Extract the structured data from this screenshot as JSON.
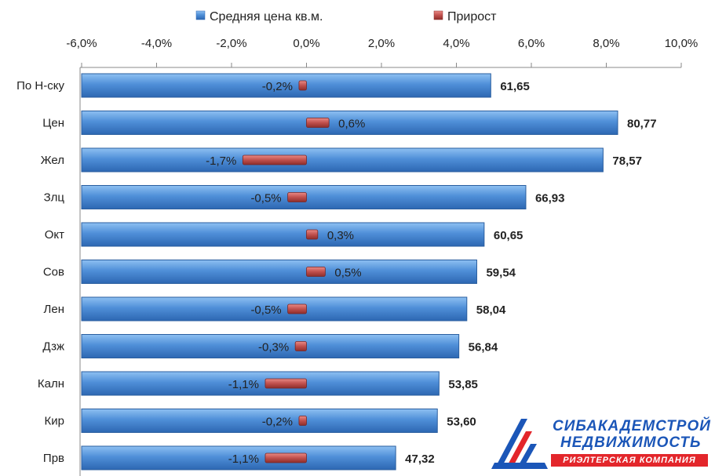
{
  "chart_data": {
    "type": "bar",
    "orientation": "horizontal",
    "categories": [
      "По Н-ску",
      "Цен",
      "Жел",
      "Злц",
      "Окт",
      "Сов",
      "Лен",
      "Дзж",
      "Калн",
      "Кир",
      "Прв"
    ],
    "series": [
      {
        "name": "Средняя цена кв.м.",
        "values": [
          61.65,
          80.77,
          78.57,
          66.93,
          60.65,
          59.54,
          58.04,
          56.84,
          53.85,
          53.6,
          47.32
        ],
        "labels": [
          "61,65",
          "80,77",
          "78,57",
          "66,93",
          "60,65",
          "59,54",
          "58,04",
          "56,84",
          "53,85",
          "53,60",
          "47,32"
        ],
        "color": "#4f8fd8"
      },
      {
        "name": "Прирост",
        "values": [
          -0.2,
          0.6,
          -1.7,
          -0.5,
          0.3,
          0.5,
          -0.5,
          -0.3,
          -1.1,
          -0.2,
          -1.1
        ],
        "labels": [
          "-0,2%",
          "0,6%",
          "-1,7%",
          "-0,5%",
          "0,3%",
          "0,5%",
          "-0,5%",
          "-0,3%",
          "-1,1%",
          "-0,2%",
          "-1,1%"
        ],
        "color": "#c0504d"
      }
    ],
    "x_axis": {
      "ticks": [
        "-6,0%",
        "-4,0%",
        "-2,0%",
        "0,0%",
        "2,0%",
        "4,0%",
        "6,0%",
        "8,0%",
        "10,0%"
      ],
      "tick_values": [
        -6,
        -4,
        -2,
        0,
        2,
        4,
        6,
        8,
        10
      ],
      "range": [
        -6,
        10
      ],
      "position": "top"
    },
    "legend_position": "top",
    "grid": false
  },
  "logo": {
    "line1": "СИБАКАДЕМСТРОЙ",
    "line2": "НЕДВИЖИМОСТЬ",
    "line3": "РИЭЛТЕРСКАЯ КОМПАНИЯ"
  }
}
